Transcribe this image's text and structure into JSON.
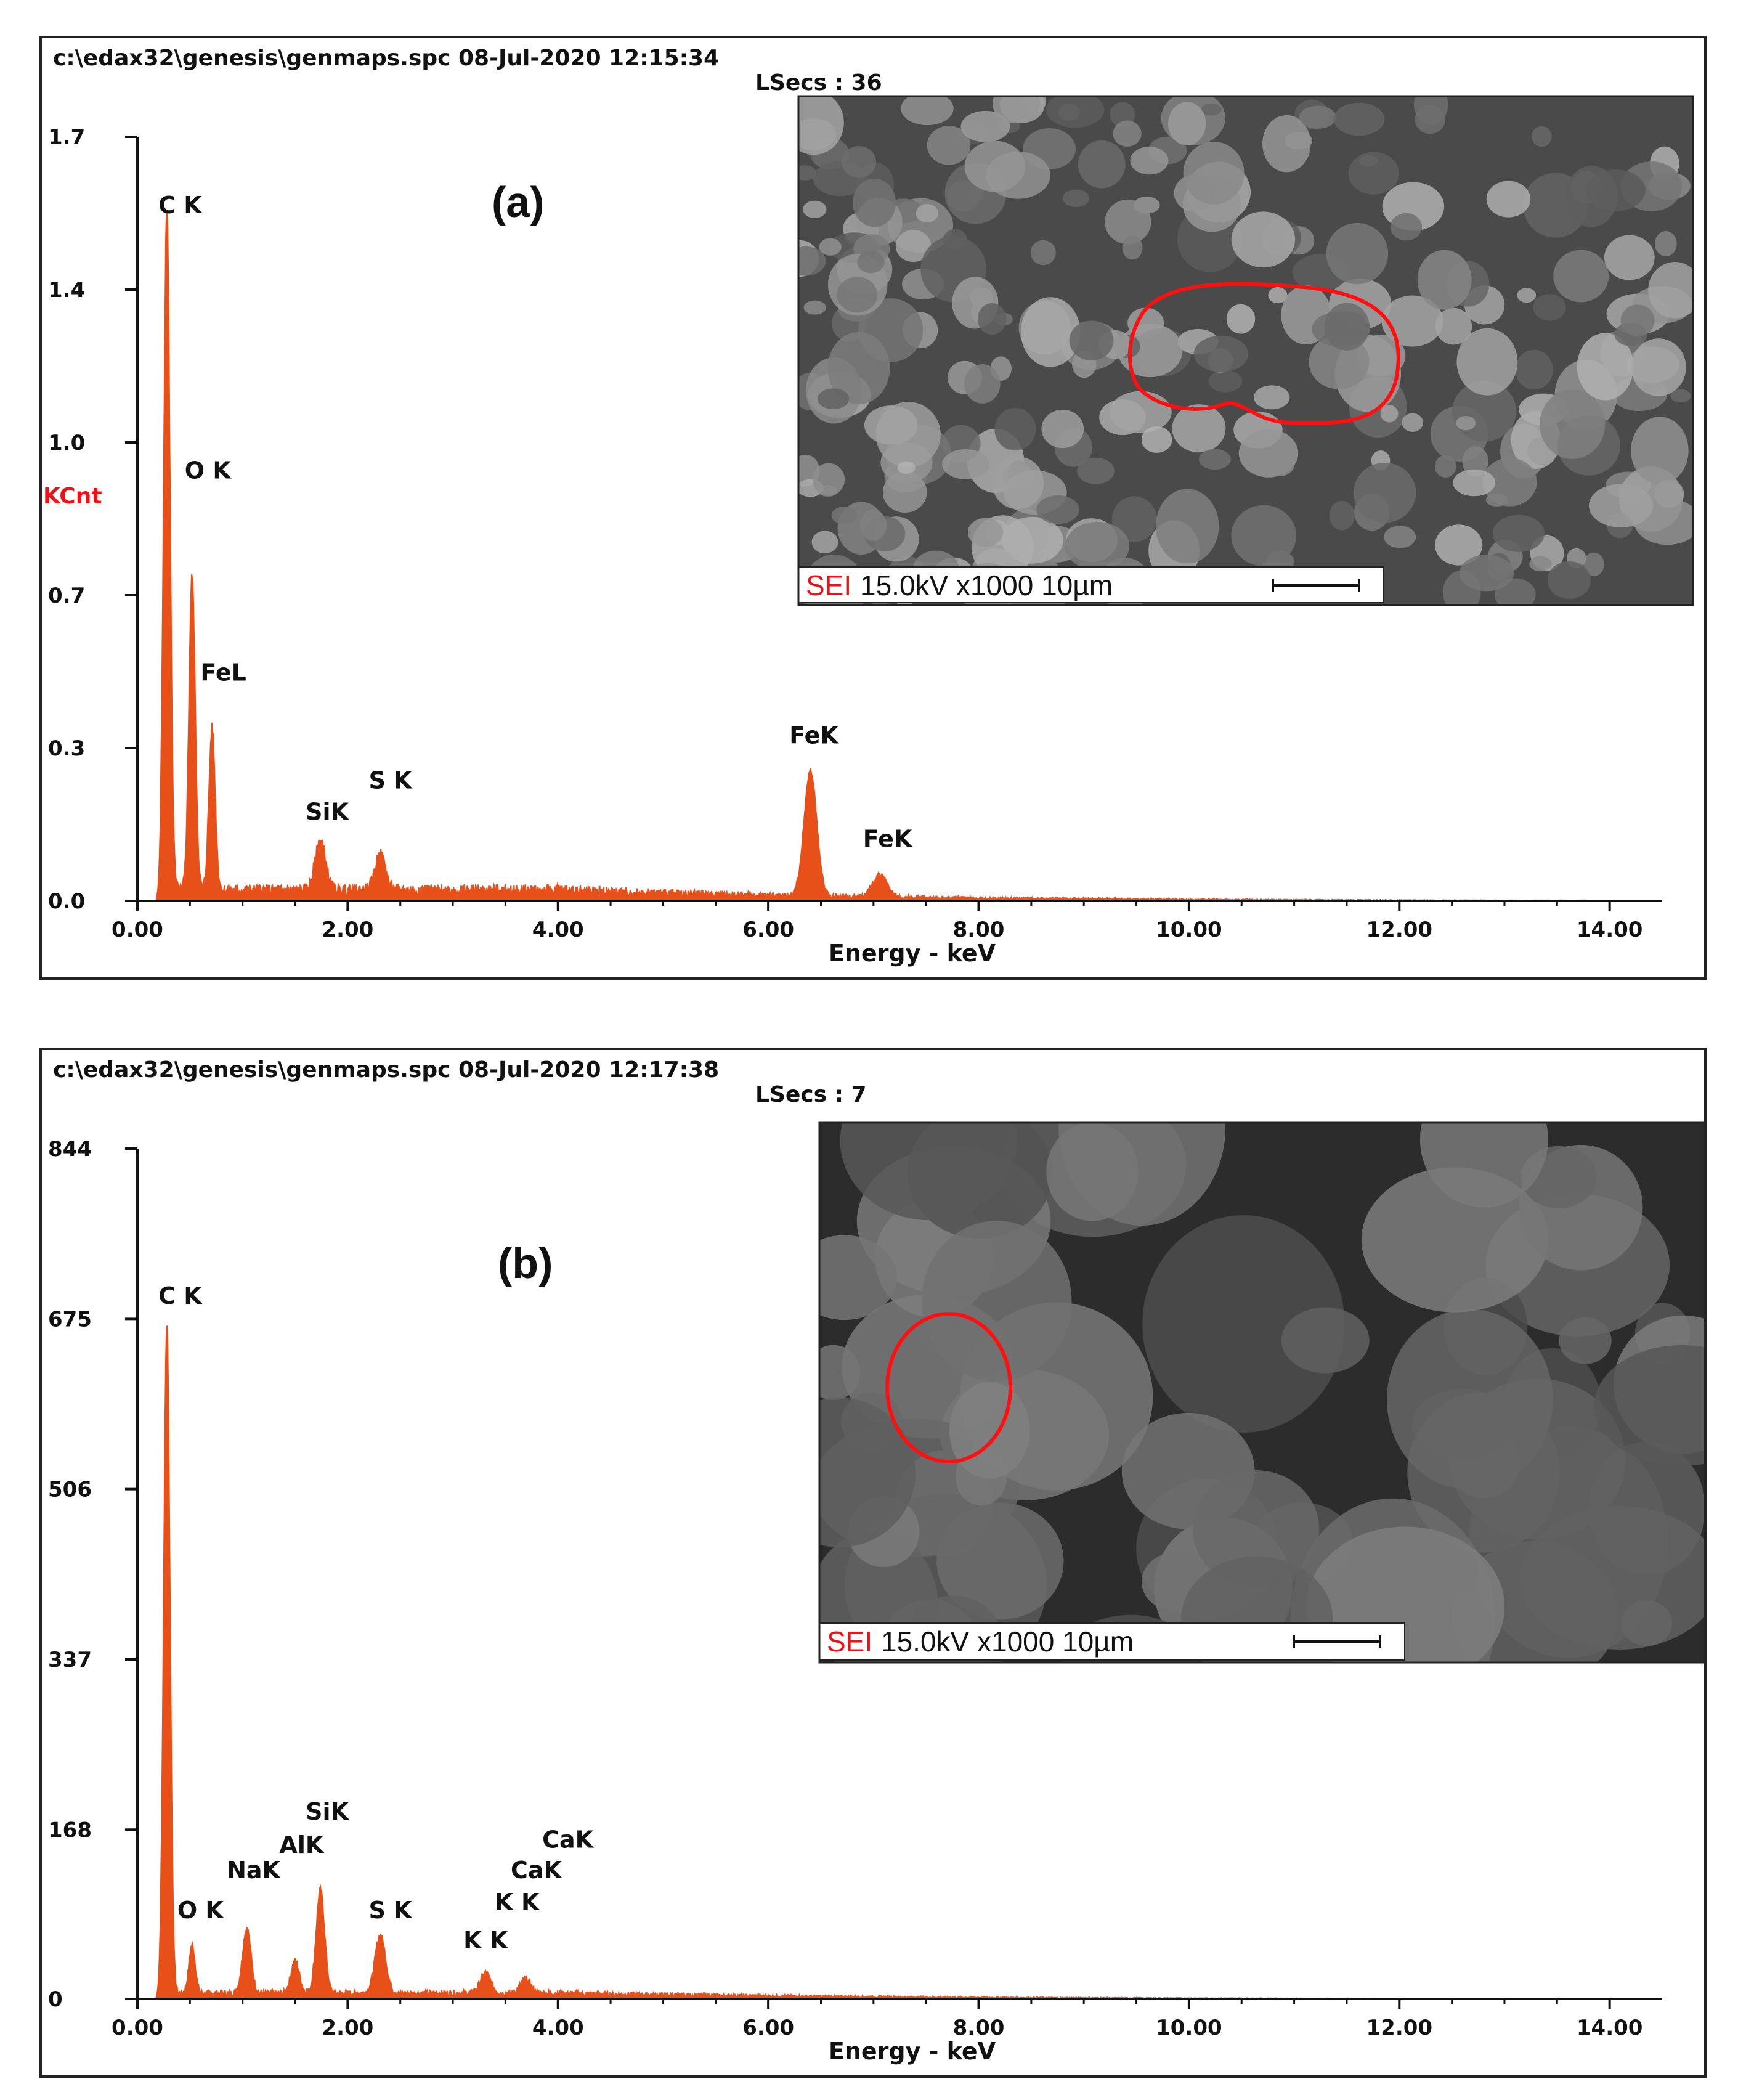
{
  "colors": {
    "spectrum": "#e8501a",
    "axis": "#111111",
    "kcnt": "#e8141a",
    "roi": "#ff1010"
  },
  "chart_data": [
    {
      "panel_label": "(a)",
      "type": "line",
      "header_line1": "c:\\edax32\\genesis\\genmaps.spc  08-Jul-2020 12:15:34",
      "header_line2": "LSecs :  36",
      "xlabel": "Energy - keV",
      "ylabel": "KCnt",
      "xlim": [
        0,
        14.5
      ],
      "ylim": [
        0,
        1.7
      ],
      "x_ticks": [
        "0.00",
        "2.00",
        "4.00",
        "6.00",
        "8.00",
        "10.00",
        "12.00",
        "14.00"
      ],
      "y_ticks": [
        "0.0",
        "0.3",
        "0.7",
        "1.0",
        "1.4",
        "1.7"
      ],
      "y_tick_values": [
        0,
        0.34,
        0.68,
        1.02,
        1.36,
        1.7
      ],
      "peaks": [
        {
          "label": "C K",
          "energy": 0.28,
          "intensity": 1.52,
          "width": 0.03,
          "label_x": 0.2,
          "label_y": 1.53
        },
        {
          "label": "O K",
          "energy": 0.52,
          "intensity": 0.7,
          "width": 0.03,
          "label_x": 0.45,
          "label_y": 0.94
        },
        {
          "label": "FeL",
          "energy": 0.71,
          "intensity": 0.36,
          "width": 0.03,
          "label_x": 0.6,
          "label_y": 0.49
        },
        {
          "label": "SiK",
          "energy": 1.74,
          "intensity": 0.11,
          "width": 0.05,
          "label_x": 1.6,
          "label_y": 0.18
        },
        {
          "label": "S K",
          "energy": 2.31,
          "intensity": 0.08,
          "width": 0.05,
          "label_x": 2.2,
          "label_y": 0.25
        },
        {
          "label": "FeK",
          "energy": 6.4,
          "intensity": 0.28,
          "width": 0.06,
          "label_x": 6.2,
          "label_y": 0.35
        },
        {
          "label": "FeK",
          "energy": 7.06,
          "intensity": 0.05,
          "width": 0.07,
          "label_x": 6.9,
          "label_y": 0.12
        }
      ],
      "background_level": 0.025,
      "sem_inset": {
        "info": "15.0kV  x1000   10µm",
        "detector": "SEI"
      }
    },
    {
      "panel_label": "(b)",
      "type": "line",
      "header_line1": "c:\\edax32\\genesis\\genmaps.spc  08-Jul-2020 12:17:38",
      "header_line2": "LSecs :  7",
      "xlabel": "Energy - keV",
      "ylabel": "",
      "xlim": [
        0,
        14.5
      ],
      "ylim": [
        0,
        844
      ],
      "x_ticks": [
        "0.00",
        "2.00",
        "4.00",
        "6.00",
        "8.00",
        "10.00",
        "12.00",
        "14.00"
      ],
      "y_ticks": [
        "0",
        "168",
        "337",
        "506",
        "675",
        "844"
      ],
      "y_tick_values": [
        0,
        168,
        337,
        506,
        675,
        844
      ],
      "peaks": [
        {
          "label": "C K",
          "energy": 0.28,
          "intensity": 665,
          "width": 0.03,
          "label_x": 0.2,
          "label_y": 690
        },
        {
          "label": "O K",
          "energy": 0.52,
          "intensity": 48,
          "width": 0.03,
          "label_x": 0.38,
          "label_y": 80
        },
        {
          "label": "NaK",
          "energy": 1.04,
          "intensity": 65,
          "width": 0.04,
          "label_x": 0.85,
          "label_y": 120
        },
        {
          "label": "",
          "energy": 1.5,
          "intensity": 32,
          "width": 0.04,
          "label_x": 0,
          "label_y": 0
        },
        {
          "label": "AlK",
          "energy": 1.49,
          "intensity": 0,
          "width": 0.04,
          "label_x": 1.35,
          "label_y": 145
        },
        {
          "label": "SiK",
          "energy": 1.74,
          "intensity": 103,
          "width": 0.04,
          "label_x": 1.6,
          "label_y": 178
        },
        {
          "label": "S K",
          "energy": 2.31,
          "intensity": 58,
          "width": 0.05,
          "label_x": 2.2,
          "label_y": 80
        },
        {
          "label": "K K",
          "energy": 3.31,
          "intensity": 20,
          "width": 0.05,
          "label_x": 3.1,
          "label_y": 50
        },
        {
          "label": "K K",
          "energy": 3.59,
          "intensity": 0,
          "width": 0.05,
          "label_x": 3.4,
          "label_y": 88
        },
        {
          "label": "CaK",
          "energy": 3.69,
          "intensity": 14,
          "width": 0.05,
          "label_x": 3.55,
          "label_y": 120
        },
        {
          "label": "CaK",
          "energy": 4.01,
          "intensity": 0,
          "width": 0.05,
          "label_x": 3.85,
          "label_y": 150
        }
      ],
      "background_level": 6,
      "sem_inset": {
        "info": "15.0kV  x1000   10µm",
        "detector": "SEI"
      }
    }
  ]
}
